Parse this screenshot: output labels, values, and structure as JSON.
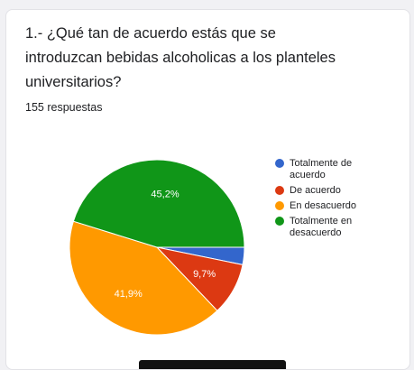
{
  "question": {
    "title": "1.- ¿Qué tan de acuerdo estás que se introduzcan bebidas alcoholicas a los planteles universitarios?",
    "responses": "155 respuestas"
  },
  "chart_data": {
    "type": "pie",
    "categories": [
      "Totalmente de acuerdo",
      "De acuerdo",
      "En desacuerdo",
      "Totalmente en desacuerdo"
    ],
    "values": [
      3.2,
      9.7,
      41.9,
      45.2
    ],
    "labels": [
      "",
      "9,7%",
      "41,9%",
      "45,2%"
    ],
    "colors": [
      "#3366cc",
      "#dc3912",
      "#ff9900",
      "#109618"
    ],
    "legend_position": "right"
  }
}
